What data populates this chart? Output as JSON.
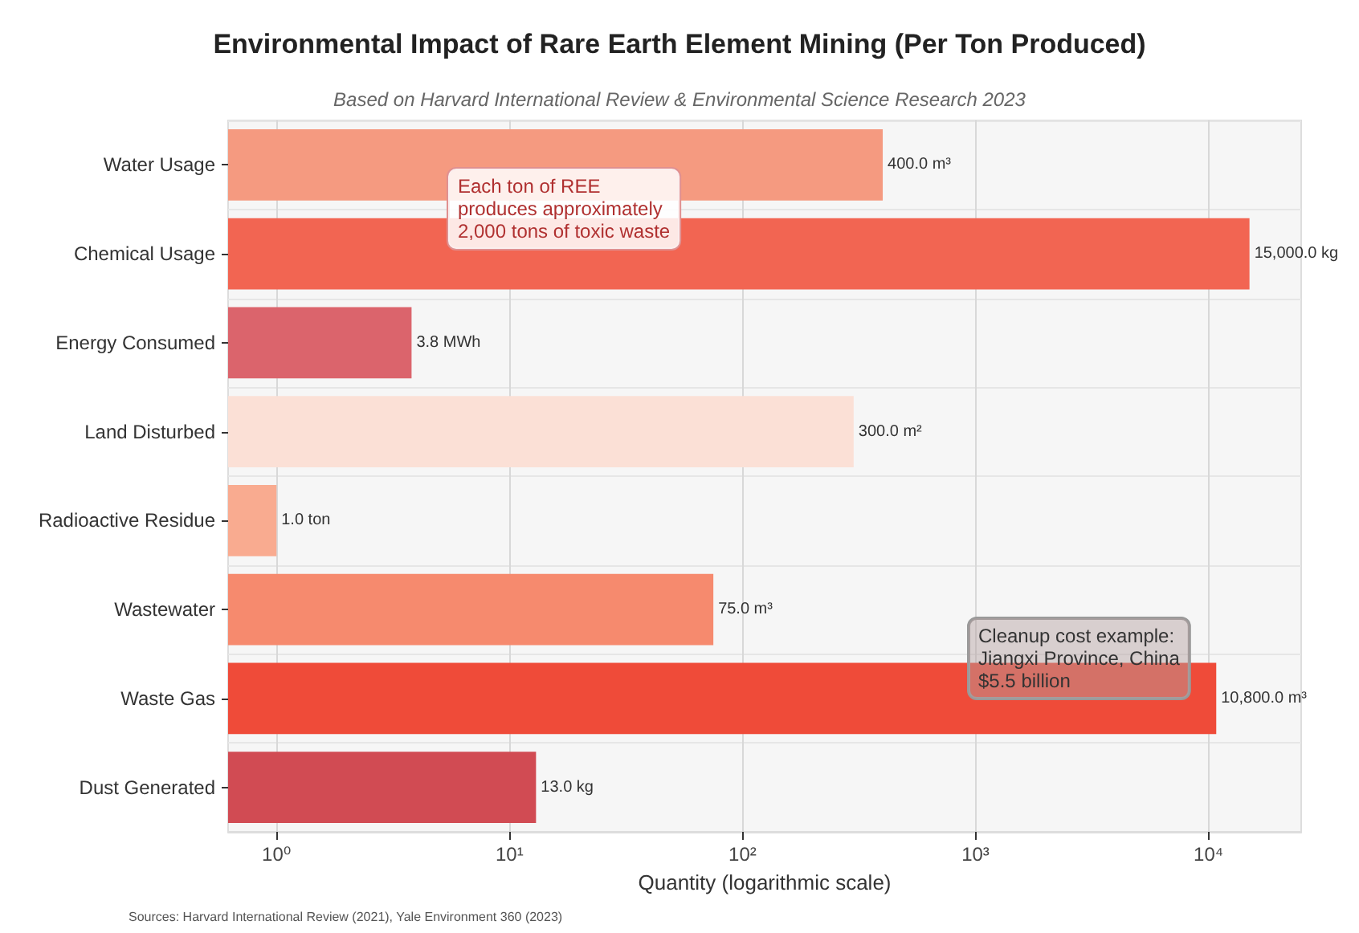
{
  "chart_data": {
    "type": "bar",
    "orientation": "horizontal",
    "log": "x",
    "title": "Environmental Impact of Rare Earth Element Mining (Per Ton Produced)",
    "subtitle": "Based on Harvard International Review & Environmental Science Research 2023",
    "xlabel": "Quantity (logarithmic scale)",
    "categories": [
      "Water Usage",
      "Chemical Usage",
      "Energy Consumed",
      "Land Disturbed",
      "Radioactive Residue",
      "Wastewater",
      "Waste Gas",
      "Dust Generated"
    ],
    "values": [
      400,
      15000,
      3.8,
      300,
      1,
      75,
      10800,
      13
    ],
    "value_labels": [
      "400.0 m³",
      "15,000.0 kg",
      "3.8 MWh",
      "300.0 m²",
      "1.0 ton",
      "75.0 m³",
      "10,800.0 m³",
      "13.0 kg"
    ],
    "colors": [
      "#f59a80",
      "#f26552",
      "#db646c",
      "#fbe0d6",
      "#f9ab90",
      "#f68a6e",
      "#ef4b39",
      "#d14b53"
    ],
    "xlim": [
      0.62,
      25000
    ],
    "xticks": [
      {
        "value": 1,
        "label": "10⁰"
      },
      {
        "value": 10,
        "label": "10¹"
      },
      {
        "value": 100,
        "label": "10²"
      },
      {
        "value": 1000,
        "label": "10³"
      },
      {
        "value": 10000,
        "label": "10⁴"
      }
    ],
    "annotations": [
      "Each ton of REE\nproduces approximately\n2,000 tons of toxic waste",
      "Cleanup cost example:\nJiangxi Province, China\n$5.5 billion",
      "Sources: Harvard International Review (2021), Yale Environment 360 (2023)"
    ],
    "grid": true
  }
}
